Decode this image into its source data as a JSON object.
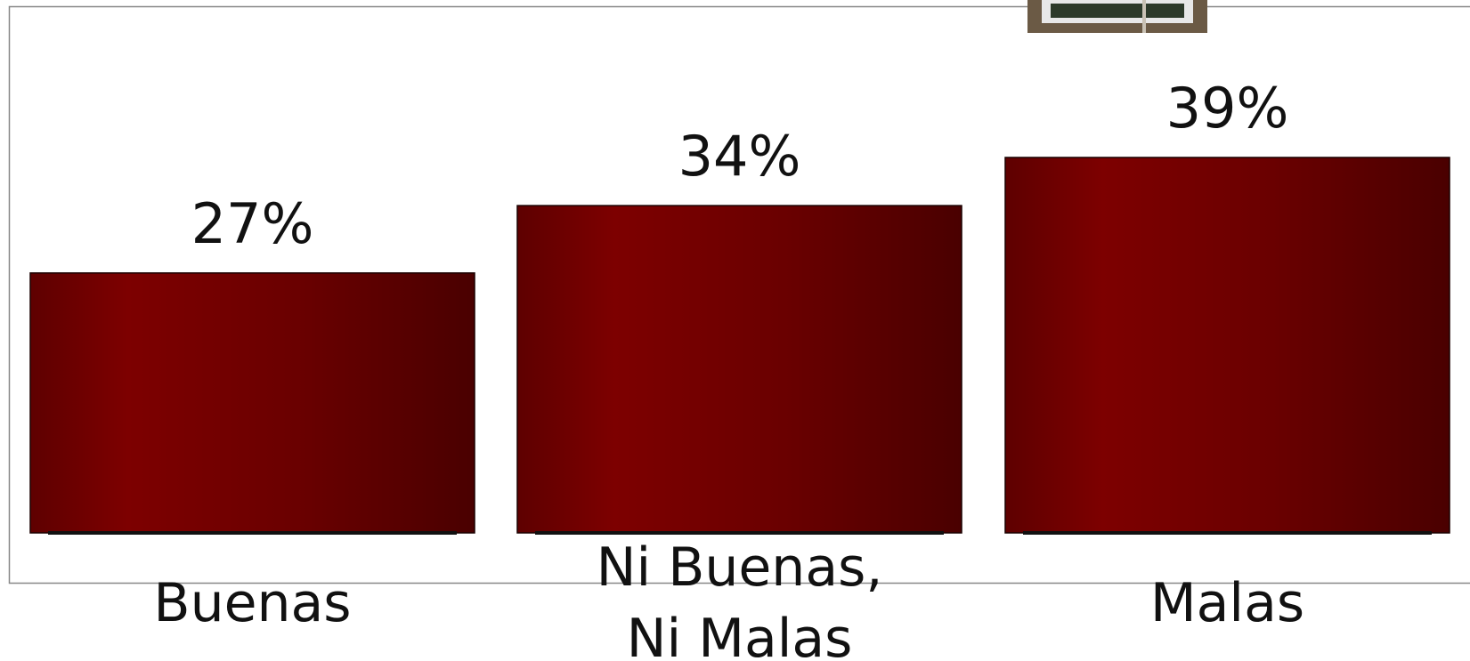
{
  "chart_data": {
    "type": "bar",
    "categories": [
      "Buenas",
      "Ni Buenas, Ni Malas",
      "Malas"
    ],
    "values": [
      27,
      34,
      39
    ],
    "value_labels": [
      "27%",
      "34%",
      "39%"
    ],
    "color": "#7a0000"
  }
}
